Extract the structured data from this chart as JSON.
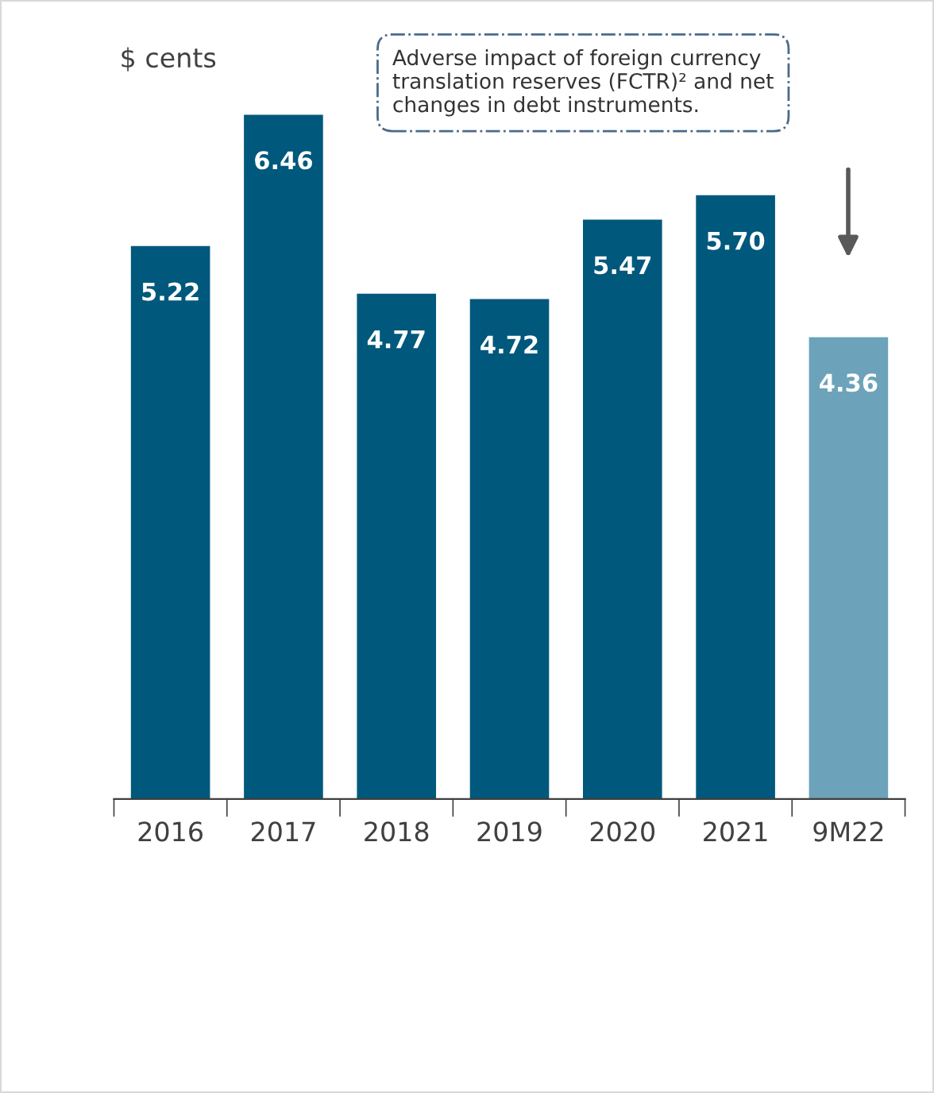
{
  "chart_data": {
    "type": "bar",
    "ylabel": "$ cents",
    "categories": [
      "2016",
      "2017",
      "2018",
      "2019",
      "2020",
      "2021",
      "9M22"
    ],
    "values": [
      5.22,
      6.46,
      4.77,
      4.72,
      5.47,
      5.7,
      4.36
    ],
    "colors": [
      "#00587c",
      "#00587c",
      "#00587c",
      "#00587c",
      "#00587c",
      "#00587c",
      "#6ca3ba"
    ],
    "value_labels": [
      "5.22",
      "6.46",
      "4.77",
      "4.72",
      "5.47",
      "5.70",
      "4.36"
    ],
    "grid": false,
    "legend": false,
    "annotations": [
      "Adverse impact of foreign currency\ntranslation reserves (FCTR)² and net\nchanges in debt instruments."
    ]
  }
}
